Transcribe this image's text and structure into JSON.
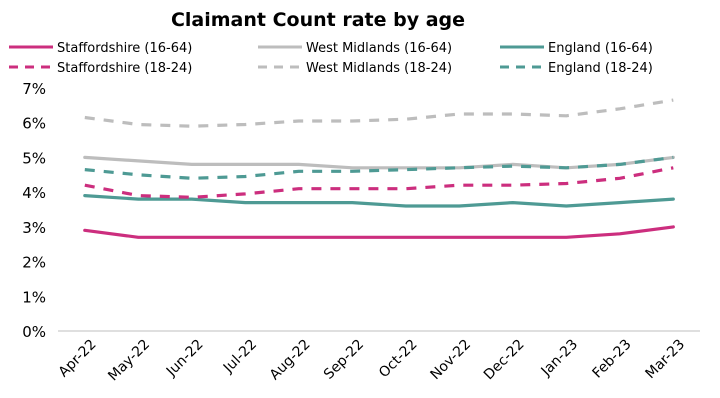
{
  "chart_data": {
    "type": "line",
    "title": "Claimant Count rate by age",
    "xlabel": "",
    "ylabel": "",
    "ylim": [
      0,
      7
    ],
    "yticks": [
      "0%",
      "1%",
      "2%",
      "3%",
      "4%",
      "5%",
      "6%",
      "7%"
    ],
    "grid": false,
    "legend_position": "top",
    "categories": [
      "Apr-22",
      "May-22",
      "Jun-22",
      "Jul-22",
      "Aug-22",
      "Sep-22",
      "Oct-22",
      "Nov-22",
      "Dec-22",
      "Jan-23",
      "Feb-23",
      "Mar-23"
    ],
    "series": [
      {
        "name": "Staffordshire (16-64)",
        "color": "#cc2e7e",
        "dash": false,
        "values": [
          2.9,
          2.7,
          2.7,
          2.7,
          2.7,
          2.7,
          2.7,
          2.7,
          2.7,
          2.7,
          2.8,
          3.0
        ]
      },
      {
        "name": "West Midlands (16-64)",
        "color": "#bdbdbd",
        "dash": false,
        "values": [
          5.0,
          4.9,
          4.8,
          4.8,
          4.8,
          4.7,
          4.7,
          4.7,
          4.8,
          4.7,
          4.8,
          5.0
        ]
      },
      {
        "name": "England (16-64)",
        "color": "#4e9a94",
        "dash": false,
        "values": [
          3.9,
          3.8,
          3.8,
          3.7,
          3.7,
          3.7,
          3.6,
          3.6,
          3.7,
          3.6,
          3.7,
          3.8
        ]
      },
      {
        "name": "Staffordshire (18-24)",
        "color": "#cc2e7e",
        "dash": true,
        "values": [
          4.2,
          3.9,
          3.85,
          3.95,
          4.1,
          4.1,
          4.1,
          4.2,
          4.2,
          4.25,
          4.4,
          4.7
        ]
      },
      {
        "name": "West Midlands (18-24)",
        "color": "#bdbdbd",
        "dash": true,
        "values": [
          6.15,
          5.95,
          5.9,
          5.95,
          6.05,
          6.05,
          6.1,
          6.25,
          6.25,
          6.2,
          6.4,
          6.65
        ]
      },
      {
        "name": "England (18-24)",
        "color": "#4e9a94",
        "dash": true,
        "values": [
          4.65,
          4.5,
          4.4,
          4.45,
          4.6,
          4.6,
          4.65,
          4.7,
          4.75,
          4.7,
          4.8,
          5.0
        ]
      }
    ]
  }
}
